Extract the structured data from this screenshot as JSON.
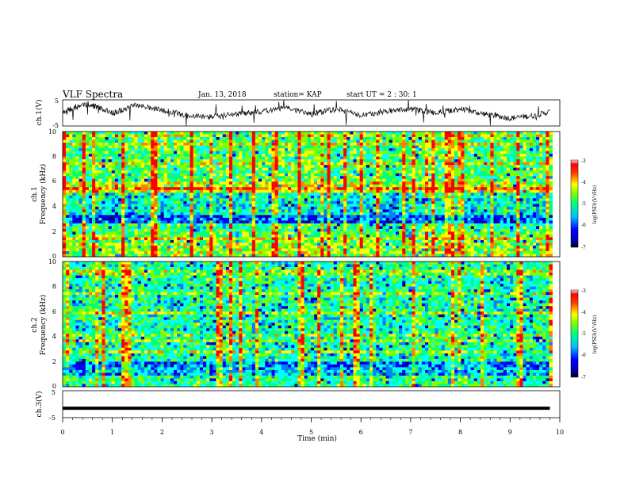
{
  "header": {
    "title": "VLF Spectra",
    "date": "Jan. 13, 2018",
    "station": "station= KAP",
    "start_time": "start  UT =  2 : 30: 1"
  },
  "colors": {
    "line": "#000000",
    "colormap": [
      "#0000a0",
      "#0000ff",
      "#0080ff",
      "#00ffff",
      "#00ff80",
      "#80ff00",
      "#ffff00",
      "#ff8000",
      "#ff0000"
    ]
  },
  "chart_data": [
    {
      "type": "line",
      "name": "ch1-waveform",
      "ylabel": "ch.1(V)",
      "ylim": [
        -5,
        5
      ],
      "yticks": [
        "5",
        "-5"
      ],
      "xlim": [
        0,
        10
      ],
      "x": [
        0,
        0.5,
        1,
        1.5,
        2,
        2.5,
        3,
        3.5,
        4,
        4.5,
        5,
        5.5,
        6,
        6.5,
        7,
        7.5,
        8,
        8.5,
        9,
        9.5,
        9.8
      ],
      "y": [
        0.5,
        3.5,
        0,
        3,
        1,
        -1,
        -1.5,
        -0.5,
        0.5,
        2,
        -0.5,
        1.5,
        -1,
        0.5,
        1.5,
        0,
        1.5,
        -0.5,
        -2,
        -1,
        0.5
      ]
    },
    {
      "type": "heatmap",
      "name": "ch1-spectrogram",
      "ylabel": "ch.1",
      "ylabel2": "Frequency (kHz)",
      "ylim": [
        0,
        10
      ],
      "yticks": [
        "0",
        "2",
        "4",
        "6",
        "8",
        "10"
      ],
      "xlim": [
        0,
        10
      ],
      "colorbar": {
        "label": "log(PSD)(V²/Hz)",
        "range": [
          -7,
          -3
        ],
        "ticks": [
          "-3",
          "-4",
          "-5",
          "-6",
          "-7"
        ]
      }
    },
    {
      "type": "heatmap",
      "name": "ch2-spectrogram",
      "ylabel": "ch.2",
      "ylabel2": "Frequency (kHz)",
      "ylim": [
        0,
        10
      ],
      "yticks": [
        "0",
        "2",
        "4",
        "6",
        "8",
        "10"
      ],
      "xlim": [
        0,
        10
      ],
      "colorbar": {
        "label": "log(PSD)(V²/Hz)",
        "range": [
          -7,
          -3
        ],
        "ticks": [
          "-3",
          "-4",
          "-5",
          "-6",
          "-7"
        ]
      }
    },
    {
      "type": "line",
      "name": "ch3-waveform",
      "ylabel": "ch.3(V)",
      "ylim": [
        -5,
        5
      ],
      "yticks": [
        "5",
        "-5"
      ],
      "xlim": [
        0,
        10
      ],
      "x": [
        0,
        9.8
      ],
      "y": [
        -1.5,
        -1.5
      ]
    }
  ],
  "xaxis": {
    "label": "Time (min)",
    "ticks": [
      "0",
      "1",
      "2",
      "3",
      "4",
      "5",
      "6",
      "7",
      "8",
      "9",
      "10"
    ]
  }
}
